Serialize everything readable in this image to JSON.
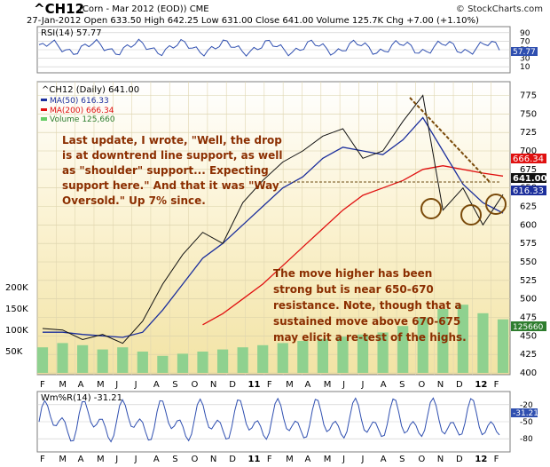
{
  "header": {
    "symbol": "^CH12",
    "description": "(Corn - Mar 2012 (EOD))  CME",
    "quote_line": "27-Jan-2012   Open 633.50  High 642.25  Low 631.00  Close 641.00  Volume 125.7K  Chg +7.00 (+1.10%)",
    "brand": "© StockCharts.com"
  },
  "colors": {
    "price_bg": "#f5e9b8",
    "price_bg_top": "#ffffff",
    "panel_bg": "#ffffff",
    "indicator_bg": "#eef2ff",
    "ma50": "#1c2f9c",
    "ma200": "#e01010",
    "annotation_text": "#8b2e00",
    "volume": "#66cc66",
    "circle": "#7a4a0a",
    "trendline": "#7a4a0a",
    "grid": "#c9c9c9"
  },
  "rsi_panel": {
    "label": "RSI(14) 57.77",
    "ticks": [
      "90",
      "70",
      "50",
      "30",
      "10"
    ],
    "value_badge": "57.77"
  },
  "price_panel": {
    "legend_main": "^CH12 (Daily) 641.00",
    "legend_ma50": "MA(50) 616.33",
    "legend_ma200": "MA(200) 666.34",
    "legend_volume": "Volume 125,660",
    "right_ticks": [
      "775",
      "750",
      "725",
      "700",
      "675",
      "650",
      "625",
      "600",
      "575",
      "550",
      "525",
      "500",
      "475",
      "450",
      "425",
      "400"
    ],
    "left_volume_ticks": [
      "200K",
      "150K",
      "100K",
      "50K"
    ],
    "badges": {
      "ma200": "666.34",
      "close": "641.00",
      "ma50": "616.33",
      "volume": "125660"
    },
    "annotation_1": [
      "Last update, I wrote, \"Well, the drop",
      "is at downtrend line support, as well",
      "as \"shoulder\" support... Expecting",
      "support here.\"  And that it was \"Way",
      "Oversold.\"  Up 7% since."
    ],
    "annotation_2": [
      "The move higher has been",
      "strong but is near 650-670",
      "resistance.  Note, though that a",
      "sustained move above 670-675",
      "may elicit a re-test of the highs."
    ]
  },
  "x_axis": {
    "labels": [
      "F",
      "M",
      "A",
      "M",
      "J",
      "J",
      "A",
      "S",
      "O",
      "N",
      "D",
      "11",
      "F",
      "M",
      "A",
      "M",
      "J",
      "J",
      "A",
      "S",
      "O",
      "N",
      "D",
      "12",
      "F"
    ]
  },
  "wmr_panel": {
    "label": "Wm%R(14) -31.21",
    "ticks": [
      "-20",
      "-50",
      "-80"
    ],
    "value_badge": "-31.21"
  },
  "chart_data": {
    "type": "line",
    "title": "^CH12 (Corn - Mar 2012 (EOD)) CME",
    "xlabel": "",
    "ylabel": "",
    "ylim": [
      400,
      790
    ],
    "x": [
      "Feb 2010",
      "Mar 2010",
      "Apr 2010",
      "May 2010",
      "Jun 2010",
      "Jul 2010",
      "Aug 2010",
      "Sep 2010",
      "Oct 2010",
      "Nov 2010",
      "Dec 2010",
      "Jan 2011",
      "Feb 2011",
      "Mar 2011",
      "Apr 2011",
      "May 2011",
      "Jun 2011",
      "Jul 2011",
      "Aug 2011",
      "Sep 2011",
      "Oct 2011",
      "Nov 2011",
      "Dec 2011",
      "Jan 2012"
    ],
    "series": [
      {
        "name": "^CH12 (Daily)",
        "values": [
          460,
          458,
          445,
          452,
          440,
          470,
          520,
          560,
          590,
          575,
          630,
          660,
          685,
          700,
          720,
          730,
          690,
          700,
          740,
          775,
          620,
          650,
          600,
          641
        ]
      },
      {
        "name": "MA(50)",
        "values": [
          455,
          455,
          452,
          450,
          448,
          455,
          485,
          520,
          555,
          575,
          600,
          625,
          650,
          665,
          690,
          705,
          700,
          695,
          715,
          745,
          700,
          655,
          630,
          616
        ]
      },
      {
        "name": "MA(200)",
        "values": [
          null,
          null,
          null,
          null,
          null,
          null,
          null,
          null,
          465,
          480,
          500,
          520,
          545,
          570,
          595,
          620,
          640,
          650,
          660,
          675,
          680,
          675,
          670,
          666
        ]
      }
    ],
    "volume_ylim": [
      0,
      250000
    ],
    "volume_values": [
      60000,
      70000,
      65000,
      55000,
      60000,
      50000,
      40000,
      45000,
      50000,
      55000,
      60000,
      65000,
      70000,
      75000,
      80000,
      85000,
      90000,
      95000,
      110000,
      130000,
      150000,
      160000,
      140000,
      125660
    ]
  }
}
